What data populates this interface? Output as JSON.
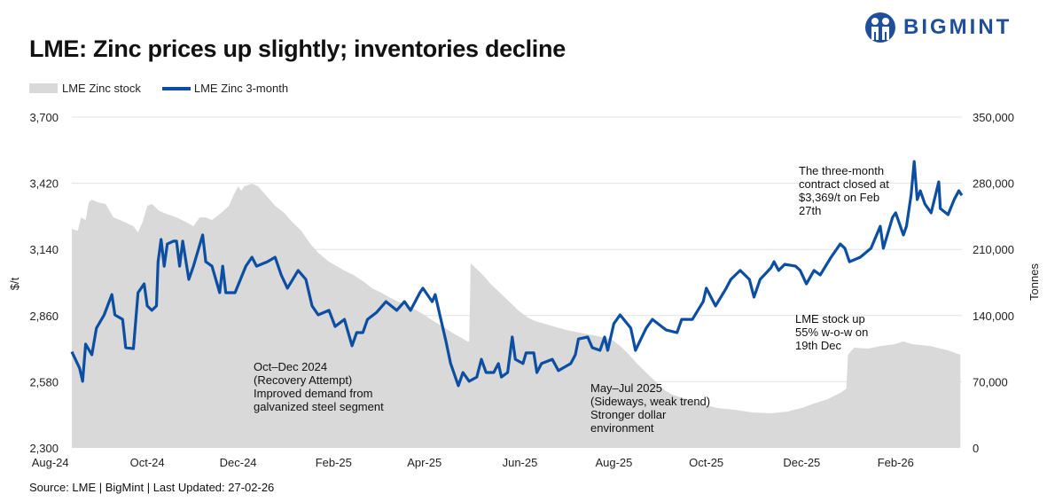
{
  "title": "LME: Zinc prices up slightly; inventories decline",
  "logo": {
    "text": "BIGMINT"
  },
  "source": "Source: LME | BigMint | Last Updated: 27-02-26",
  "chart_data": {
    "type": "line+area",
    "title": "LME: Zinc prices up slightly; inventories decline",
    "xlabel": "",
    "ylabel_left": "$/t",
    "ylabel_right": "Tonnes",
    "x_unit": "days since early Aug-24",
    "xlim": [
      0,
      578
    ],
    "ylim_left": [
      2300,
      3700
    ],
    "ylim_right": [
      0,
      350000
    ],
    "left_ticks": [
      "2,300",
      "2,580",
      "2,860",
      "3,140",
      "3,420",
      "3,700"
    ],
    "left_tick_values": [
      2300,
      2580,
      2860,
      3140,
      3420,
      3700
    ],
    "right_ticks": [
      "0",
      "70,000",
      "140,000",
      "210,000",
      "280,000",
      "350,000"
    ],
    "right_tick_values": [
      0,
      70000,
      140000,
      210000,
      280000,
      350000
    ],
    "x_ticks": [
      {
        "label": "Aug-24",
        "x": -14
      },
      {
        "label": "Oct-24",
        "x": 49
      },
      {
        "label": "Dec-24",
        "x": 108
      },
      {
        "label": "Feb-25",
        "x": 170
      },
      {
        "label": "Apr-25",
        "x": 229
      },
      {
        "label": "Jun-25",
        "x": 291
      },
      {
        "label": "Aug-25",
        "x": 352
      },
      {
        "label": "Oct-25",
        "x": 412
      },
      {
        "label": "Dec-25",
        "x": 474
      },
      {
        "label": "Feb-26",
        "x": 535
      }
    ],
    "grid": "horizontal",
    "legend_position": "top-left",
    "colors": {
      "price": "#0b4ea2",
      "stock": "#d9d9d9",
      "grid": "#e3e3e3"
    },
    "series": [
      {
        "name": "LME Zinc stock",
        "type": "area",
        "axis": "right",
        "points": [
          [
            0,
            231700
          ],
          [
            4,
            229800
          ],
          [
            6,
            243900
          ],
          [
            9,
            241100
          ],
          [
            11,
            259800
          ],
          [
            13,
            262600
          ],
          [
            17,
            259800
          ],
          [
            22,
            258000
          ],
          [
            27,
            243900
          ],
          [
            34,
            239200
          ],
          [
            40,
            234500
          ],
          [
            43,
            227900
          ],
          [
            46,
            239200
          ],
          [
            49,
            256100
          ],
          [
            52,
            258000
          ],
          [
            57,
            250400
          ],
          [
            63,
            246700
          ],
          [
            68,
            243900
          ],
          [
            74,
            239200
          ],
          [
            79,
            234500
          ],
          [
            83,
            243900
          ],
          [
            87,
            243900
          ],
          [
            91,
            241100
          ],
          [
            97,
            248600
          ],
          [
            102,
            256100
          ],
          [
            105,
            267300
          ],
          [
            108,
            276700
          ],
          [
            110,
            272000
          ],
          [
            112,
            276700
          ],
          [
            117,
            279500
          ],
          [
            121,
            276700
          ],
          [
            126,
            267300
          ],
          [
            132,
            256100
          ],
          [
            138,
            248600
          ],
          [
            143,
            239200
          ],
          [
            149,
            229800
          ],
          [
            155,
            215700
          ],
          [
            160,
            206400
          ],
          [
            167,
            197000
          ],
          [
            172,
            192300
          ],
          [
            177,
            187600
          ],
          [
            183,
            182900
          ],
          [
            190,
            175400
          ],
          [
            195,
            168800
          ],
          [
            201,
            164200
          ],
          [
            206,
            159500
          ],
          [
            212,
            154800
          ],
          [
            218,
            150100
          ],
          [
            224,
            145400
          ],
          [
            229,
            140700
          ],
          [
            235,
            134100
          ],
          [
            241,
            128500
          ],
          [
            247,
            121900
          ],
          [
            252,
            117300
          ],
          [
            257,
            112600
          ],
          [
            258,
            112600
          ],
          [
            259,
            195100
          ],
          [
            261,
            192300
          ],
          [
            267,
            182900
          ],
          [
            272,
            173500
          ],
          [
            278,
            164200
          ],
          [
            284,
            154800
          ],
          [
            290,
            145400
          ],
          [
            296,
            137900
          ],
          [
            301,
            134100
          ],
          [
            307,
            131300
          ],
          [
            313,
            128500
          ],
          [
            321,
            124800
          ],
          [
            330,
            121900
          ],
          [
            339,
            119100
          ],
          [
            344,
            117300
          ],
          [
            350,
            115400
          ],
          [
            356,
            107900
          ],
          [
            362,
            98500
          ],
          [
            367,
            89100
          ],
          [
            373,
            79700
          ],
          [
            379,
            70400
          ],
          [
            385,
            61000
          ],
          [
            390,
            56300
          ],
          [
            399,
            51600
          ],
          [
            408,
            46900
          ],
          [
            419,
            42200
          ],
          [
            431,
            40300
          ],
          [
            442,
            37500
          ],
          [
            454,
            36600
          ],
          [
            465,
            38500
          ],
          [
            474,
            42200
          ],
          [
            482,
            46900
          ],
          [
            491,
            51600
          ],
          [
            500,
            59100
          ],
          [
            503,
            62800
          ],
          [
            504,
            98500
          ],
          [
            508,
            106000
          ],
          [
            517,
            105100
          ],
          [
            526,
            107900
          ],
          [
            534,
            109700
          ],
          [
            540,
            112600
          ],
          [
            546,
            109700
          ],
          [
            557,
            107900
          ],
          [
            569,
            103200
          ],
          [
            577,
            98500
          ]
        ]
      },
      {
        "name": "LME Zinc 3-month",
        "type": "line",
        "axis": "left",
        "points": [
          [
            0,
            2707
          ],
          [
            5,
            2638
          ],
          [
            7,
            2582
          ],
          [
            9,
            2739
          ],
          [
            13,
            2694
          ],
          [
            16,
            2807
          ],
          [
            21,
            2863
          ],
          [
            26,
            2949
          ],
          [
            28,
            2863
          ],
          [
            33,
            2844
          ],
          [
            35,
            2724
          ],
          [
            40,
            2720
          ],
          [
            43,
            2957
          ],
          [
            47,
            2994
          ],
          [
            49,
            2901
          ],
          [
            52,
            2882
          ],
          [
            55,
            2901
          ],
          [
            56,
            3088
          ],
          [
            58,
            3182
          ],
          [
            60,
            3069
          ],
          [
            62,
            3163
          ],
          [
            66,
            3175
          ],
          [
            68,
            3175
          ],
          [
            70,
            3069
          ],
          [
            72,
            3175
          ],
          [
            76,
            3013
          ],
          [
            79,
            3069
          ],
          [
            85,
            3201
          ],
          [
            87,
            3088
          ],
          [
            91,
            3069
          ],
          [
            96,
            2957
          ],
          [
            98,
            3069
          ],
          [
            100,
            2957
          ],
          [
            106,
            2957
          ],
          [
            113,
            3069
          ],
          [
            117,
            3107
          ],
          [
            120,
            3069
          ],
          [
            127,
            3088
          ],
          [
            132,
            3107
          ],
          [
            136,
            3032
          ],
          [
            140,
            2976
          ],
          [
            147,
            3051
          ],
          [
            152,
            3013
          ],
          [
            156,
            2901
          ],
          [
            160,
            2863
          ],
          [
            167,
            2882
          ],
          [
            171,
            2814
          ],
          [
            177,
            2844
          ],
          [
            182,
            2732
          ],
          [
            185,
            2788
          ],
          [
            189,
            2788
          ],
          [
            192,
            2844
          ],
          [
            198,
            2874
          ],
          [
            204,
            2919
          ],
          [
            211,
            2882
          ],
          [
            216,
            2919
          ],
          [
            220,
            2882
          ],
          [
            226,
            2957
          ],
          [
            228,
            2976
          ],
          [
            234,
            2919
          ],
          [
            236,
            2949
          ],
          [
            239,
            2863
          ],
          [
            243,
            2750
          ],
          [
            246,
            2657
          ],
          [
            251,
            2563
          ],
          [
            254,
            2619
          ],
          [
            258,
            2582
          ],
          [
            263,
            2600
          ],
          [
            266,
            2675
          ],
          [
            269,
            2619
          ],
          [
            274,
            2619
          ],
          [
            277,
            2657
          ],
          [
            279,
            2600
          ],
          [
            283,
            2619
          ],
          [
            286,
            2769
          ],
          [
            288,
            2675
          ],
          [
            293,
            2657
          ],
          [
            295,
            2702
          ],
          [
            300,
            2702
          ],
          [
            302,
            2619
          ],
          [
            305,
            2657
          ],
          [
            312,
            2675
          ],
          [
            316,
            2627
          ],
          [
            324,
            2657
          ],
          [
            327,
            2694
          ],
          [
            329,
            2761
          ],
          [
            335,
            2769
          ],
          [
            338,
            2724
          ],
          [
            343,
            2713
          ],
          [
            346,
            2769
          ],
          [
            348,
            2713
          ],
          [
            352,
            2826
          ],
          [
            356,
            2863
          ],
          [
            363,
            2807
          ],
          [
            366,
            2713
          ],
          [
            373,
            2807
          ],
          [
            377,
            2844
          ],
          [
            386,
            2799
          ],
          [
            393,
            2788
          ],
          [
            396,
            2844
          ],
          [
            403,
            2844
          ],
          [
            410,
            2919
          ],
          [
            412,
            2976
          ],
          [
            418,
            2901
          ],
          [
            425,
            2976
          ],
          [
            428,
            3013
          ],
          [
            434,
            3051
          ],
          [
            440,
            3013
          ],
          [
            443,
            2938
          ],
          [
            447,
            3013
          ],
          [
            454,
            3062
          ],
          [
            456,
            3088
          ],
          [
            459,
            3051
          ],
          [
            463,
            3077
          ],
          [
            470,
            3069
          ],
          [
            473,
            3051
          ],
          [
            477,
            2994
          ],
          [
            482,
            3051
          ],
          [
            486,
            3032
          ],
          [
            493,
            3107
          ],
          [
            499,
            3163
          ],
          [
            502,
            3145
          ],
          [
            505,
            3088
          ],
          [
            512,
            3107
          ],
          [
            519,
            3145
          ],
          [
            525,
            3238
          ],
          [
            527,
            3145
          ],
          [
            533,
            3276
          ],
          [
            535,
            3295
          ],
          [
            540,
            3201
          ],
          [
            542,
            3238
          ],
          [
            545,
            3370
          ],
          [
            547,
            3512
          ],
          [
            549,
            3351
          ],
          [
            551,
            3388
          ],
          [
            554,
            3332
          ],
          [
            558,
            3295
          ],
          [
            563,
            3426
          ],
          [
            564,
            3313
          ],
          [
            569,
            3287
          ],
          [
            573,
            3351
          ],
          [
            576,
            3388
          ],
          [
            578,
            3369
          ]
        ]
      }
    ],
    "annotations": [
      {
        "id": "oct-dec",
        "lines": [
          "Oct–Dec 2024",
          "(Recovery Attempt)",
          "Improved demand from",
          "galvanized steel segment"
        ]
      },
      {
        "id": "may-jul",
        "lines": [
          "May–Jul 2025",
          "(Sideways, weak trend)",
          "Stronger dollar",
          "environment"
        ]
      },
      {
        "id": "stock-up",
        "lines": [
          "LME stock up",
          "55% w-o-w on",
          "19th Dec"
        ]
      },
      {
        "id": "close",
        "lines": [
          "The three-month",
          "contract closed at",
          "$3,369/t on Feb",
          "27th"
        ]
      }
    ]
  }
}
